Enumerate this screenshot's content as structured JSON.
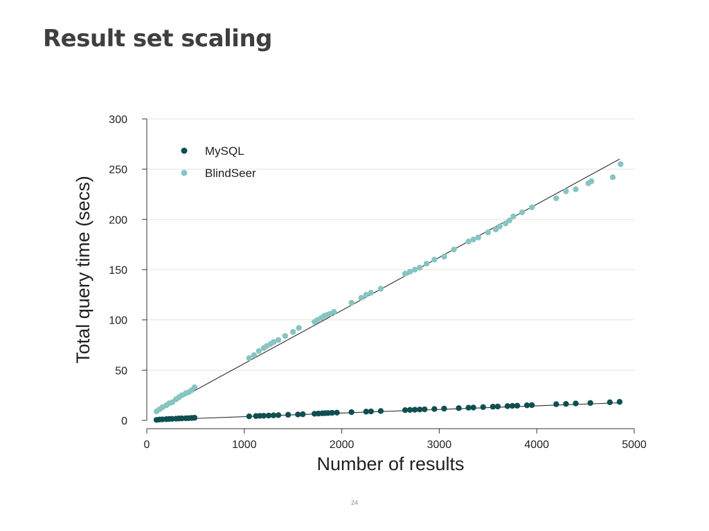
{
  "slide": {
    "title": "Result set scaling",
    "page_number": "24"
  },
  "chart_data": {
    "type": "scatter",
    "title": "",
    "xlabel": "Number of results",
    "ylabel": "Total query time (secs)",
    "xlim": [
      0,
      5000
    ],
    "ylim": [
      0,
      300
    ],
    "x_ticks": [
      0,
      1000,
      2000,
      3000,
      4000,
      5000
    ],
    "y_ticks": [
      0,
      50,
      100,
      150,
      200,
      250,
      300
    ],
    "grid": "horizontal",
    "legend_position": "top-left",
    "series": [
      {
        "name": "MySQL",
        "color": "#0f4f4f",
        "x": [
          100,
          130,
          160,
          200,
          230,
          260,
          300,
          330,
          360,
          400,
          430,
          460,
          490,
          1050,
          1120,
          1160,
          1200,
          1250,
          1300,
          1350,
          1450,
          1550,
          1600,
          1720,
          1760,
          1800,
          1830,
          1860,
          1900,
          1950,
          2100,
          2250,
          2300,
          2400,
          2650,
          2700,
          2750,
          2800,
          2850,
          2950,
          3050,
          3200,
          3300,
          3350,
          3450,
          3550,
          3600,
          3700,
          3750,
          3800,
          3900,
          3950,
          4200,
          4300,
          4400,
          4550,
          4750,
          4850
        ],
        "y": [
          0.5,
          0.8,
          1,
          1.2,
          1.4,
          1.5,
          1.7,
          1.9,
          2,
          2.1,
          2.2,
          2.4,
          2.6,
          4,
          4.3,
          4.5,
          4.6,
          4.8,
          5,
          5.2,
          5.6,
          5.9,
          6.1,
          6.6,
          6.8,
          7,
          7.2,
          7.3,
          7.5,
          7.7,
          8.2,
          8.7,
          8.9,
          9.3,
          10.2,
          10.4,
          10.6,
          10.8,
          11,
          11.3,
          11.7,
          12.2,
          12.6,
          12.8,
          13.2,
          13.6,
          13.8,
          14.2,
          14.4,
          14.6,
          15,
          15.2,
          16.1,
          16.4,
          16.8,
          17.3,
          18,
          18.4
        ]
      },
      {
        "name": "BlindSeer",
        "color": "#86c5c2",
        "x": [
          100,
          130,
          160,
          200,
          230,
          260,
          300,
          330,
          360,
          400,
          430,
          460,
          490,
          1050,
          1100,
          1150,
          1200,
          1230,
          1270,
          1300,
          1350,
          1420,
          1500,
          1560,
          1720,
          1750,
          1790,
          1820,
          1850,
          1880,
          1920,
          2100,
          2200,
          2250,
          2300,
          2400,
          2650,
          2700,
          2750,
          2800,
          2870,
          2950,
          3050,
          3150,
          3300,
          3350,
          3400,
          3500,
          3580,
          3620,
          3680,
          3720,
          3760,
          3850,
          3950,
          4200,
          4300,
          4400,
          4530,
          4560,
          4780,
          4860
        ],
        "y": [
          9,
          11,
          13,
          15,
          17,
          18,
          21,
          23,
          25,
          27,
          28,
          30,
          33,
          62,
          65,
          69,
          72,
          74,
          76,
          78,
          80,
          84,
          88,
          92,
          98,
          100,
          102,
          104,
          105,
          106,
          108,
          117,
          122,
          125,
          127,
          131,
          146,
          148,
          150,
          152,
          156,
          160,
          163,
          170,
          178,
          180,
          182,
          187,
          190,
          193,
          196,
          199,
          203,
          207,
          212,
          221,
          228,
          230,
          236,
          238,
          242,
          255
        ]
      }
    ],
    "trendlines": [
      {
        "series": "MySQL",
        "x": [
          100,
          4850
        ],
        "y": [
          0.5,
          17.5
        ]
      },
      {
        "series": "BlindSeer",
        "x": [
          100,
          4850
        ],
        "y": [
          9,
          260
        ]
      }
    ]
  }
}
